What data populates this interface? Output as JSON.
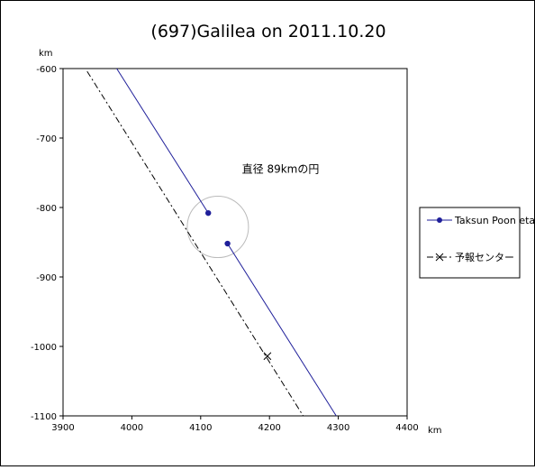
{
  "chart_data": {
    "type": "scatter",
    "title": "(697)Galilea on 2011.10.20",
    "xlabel": "km",
    "ylabel": "km",
    "xlim": [
      3900,
      4400
    ],
    "ylim": [
      -1100,
      -600
    ],
    "xticks": [
      3900,
      4000,
      4100,
      4200,
      4300,
      4400
    ],
    "yticks": [
      -600,
      -700,
      -800,
      -900,
      -1000,
      -1100
    ],
    "grid": false,
    "legend_position": "right",
    "series": [
      {
        "name": "Taksun Poon etal.",
        "color": "#1f1f9a",
        "style": "solid",
        "marker": "dot",
        "segments": [
          [
            [
              3978,
              -600
            ],
            [
              4111,
              -808
            ]
          ],
          [
            [
              4139,
              -852
            ],
            [
              4297,
              -1100
            ]
          ]
        ],
        "points": [
          [
            4111,
            -808
          ],
          [
            4139,
            -852
          ]
        ]
      },
      {
        "name": "予報センター",
        "color": "#000000",
        "style": "dash-dot",
        "marker": "x",
        "segments": [
          [
            [
              3935,
              -604
            ],
            [
              4249,
              -1100
            ]
          ]
        ],
        "points": [
          [
            4197,
            -1014
          ]
        ]
      }
    ],
    "circle": {
      "cx": 4125,
      "cy": -828,
      "diameter": 89,
      "color": "#bbbbbb"
    },
    "annotation": {
      "text": "直径 89kmの円",
      "x": 4160,
      "y": -750
    }
  }
}
